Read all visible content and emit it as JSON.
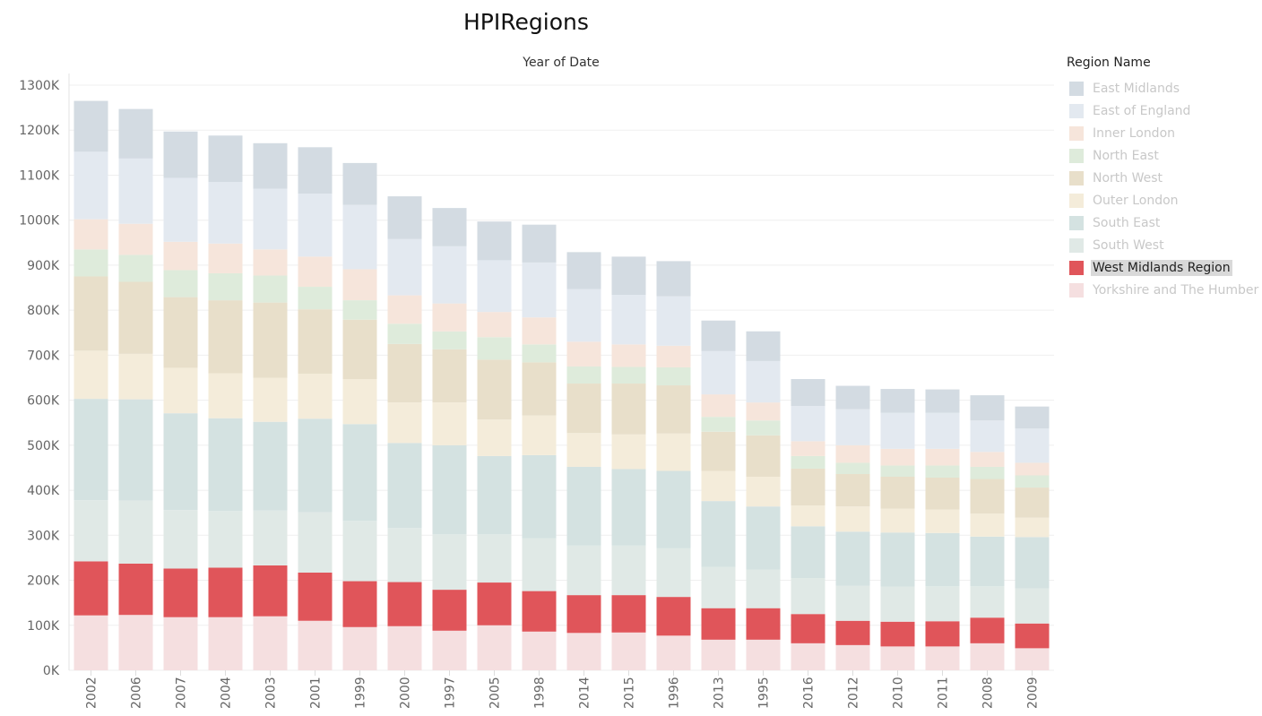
{
  "page_title": "HPIRegions",
  "legend": {
    "title": "Region Name",
    "highlighted": "West Midlands Region",
    "items": [
      {
        "name": "East Midlands",
        "color": "#d3dbe2"
      },
      {
        "name": "East of England",
        "color": "#e3e9f0"
      },
      {
        "name": "Inner London",
        "color": "#f6e5db"
      },
      {
        "name": "North East",
        "color": "#deebdb"
      },
      {
        "name": "North West",
        "color": "#e8dfca"
      },
      {
        "name": "Outer London",
        "color": "#f4ecda"
      },
      {
        "name": "South East",
        "color": "#d4e2e1"
      },
      {
        "name": "South West",
        "color": "#e0e9e6"
      },
      {
        "name": "West Midlands Region",
        "color": "#e0555a"
      },
      {
        "name": "Yorkshire and The Humber",
        "color": "#f5dfe0"
      }
    ]
  },
  "chart_data": {
    "type": "bar",
    "stacked": true,
    "title": "HPIRegions",
    "xlabel": "Year of Date",
    "ylabel": "",
    "ylim": [
      0,
      1300000
    ],
    "yticks": [
      "0K",
      "100K",
      "200K",
      "300K",
      "400K",
      "500K",
      "600K",
      "700K",
      "800K",
      "900K",
      "1000K",
      "1100K",
      "1200K",
      "1300K"
    ],
    "grid": true,
    "legend_position": "right",
    "categories": [
      "2002",
      "2006",
      "2007",
      "2004",
      "2003",
      "2001",
      "1999",
      "2000",
      "1997",
      "2005",
      "1998",
      "2014",
      "2015",
      "1996",
      "2013",
      "1995",
      "2016",
      "2012",
      "2010",
      "2011",
      "2008",
      "2009"
    ],
    "series": [
      {
        "name": "Yorkshire and The Humber",
        "values": [
          122000,
          123000,
          118000,
          118000,
          120000,
          110000,
          96000,
          98000,
          88000,
          100000,
          86000,
          83000,
          84000,
          77000,
          68000,
          68000,
          60000,
          56000,
          53000,
          53000,
          60000,
          49000
        ]
      },
      {
        "name": "West Midlands Region",
        "values": [
          120000,
          114000,
          108000,
          110000,
          113000,
          107000,
          102000,
          98000,
          91000,
          95000,
          90000,
          84000,
          83000,
          86000,
          70000,
          70000,
          65000,
          54000,
          55000,
          56000,
          57000,
          55000
        ]
      },
      {
        "name": "South West",
        "values": [
          136000,
          140000,
          130000,
          126000,
          122000,
          134000,
          134000,
          120000,
          123000,
          107000,
          117000,
          110000,
          110000,
          108000,
          92000,
          86000,
          80000,
          78000,
          78000,
          78000,
          70000,
          78000
        ]
      },
      {
        "name": "South East",
        "values": [
          225000,
          225000,
          215000,
          206000,
          197000,
          208000,
          215000,
          189000,
          198000,
          174000,
          185000,
          175000,
          170000,
          172000,
          146000,
          140000,
          115000,
          120000,
          120000,
          118000,
          110000,
          114000
        ]
      },
      {
        "name": "Outer London",
        "values": [
          107000,
          101000,
          101000,
          100000,
          98000,
          100000,
          100000,
          90000,
          95000,
          81000,
          88000,
          75000,
          77000,
          83000,
          67000,
          66000,
          46000,
          56000,
          53000,
          52000,
          51000,
          43000
        ]
      },
      {
        "name": "North West",
        "values": [
          165000,
          160000,
          157000,
          162000,
          167000,
          143000,
          132000,
          130000,
          118000,
          133000,
          118000,
          110000,
          113000,
          107000,
          87000,
          92000,
          82000,
          72000,
          71000,
          71000,
          77000,
          67000
        ]
      },
      {
        "name": "North East",
        "values": [
          60000,
          60000,
          60000,
          60000,
          60000,
          50000,
          43000,
          45000,
          40000,
          50000,
          40000,
          38000,
          37000,
          40000,
          33000,
          33000,
          28000,
          25000,
          25000,
          27000,
          27000,
          27000
        ]
      },
      {
        "name": "Inner London",
        "values": [
          67000,
          69000,
          63000,
          66000,
          58000,
          67000,
          69000,
          63000,
          62000,
          56000,
          60000,
          55000,
          50000,
          48000,
          50000,
          40000,
          33000,
          39000,
          37000,
          37000,
          33000,
          28000
        ]
      },
      {
        "name": "East of England",
        "values": [
          150000,
          145000,
          142000,
          137000,
          135000,
          140000,
          143000,
          125000,
          127000,
          115000,
          122000,
          117000,
          110000,
          110000,
          96000,
          92000,
          78000,
          80000,
          80000,
          80000,
          70000,
          76000
        ]
      },
      {
        "name": "East Midlands",
        "values": [
          113000,
          110000,
          103000,
          103000,
          101000,
          103000,
          93000,
          95000,
          85000,
          86000,
          84000,
          82000,
          85000,
          78000,
          68000,
          66000,
          60000,
          52000,
          53000,
          52000,
          56000,
          49000
        ]
      }
    ]
  }
}
